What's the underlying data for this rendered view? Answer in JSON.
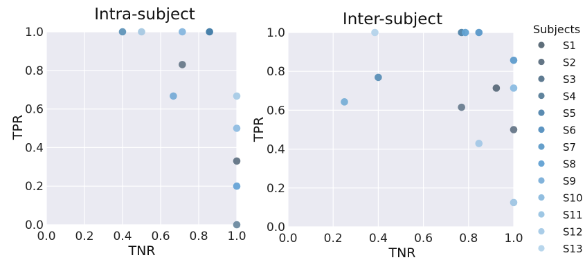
{
  "chart_data": [
    {
      "type": "scatter",
      "title": "Intra-subject",
      "xlabel": "TNR",
      "ylabel": "TPR",
      "xlim": [
        0.0,
        1.0
      ],
      "ylim": [
        0.0,
        1.0
      ],
      "xticks": [
        "0.0",
        "0.2",
        "0.4",
        "0.6",
        "0.8",
        "1.0"
      ],
      "yticks": [
        "0.0",
        "0.2",
        "0.4",
        "0.6",
        "0.8",
        "1.0"
      ],
      "grid": true,
      "points": [
        {
          "x": 1.0,
          "y": 0.33,
          "color": "#627485"
        },
        {
          "x": 0.714,
          "y": 0.83,
          "color": "#697a8a"
        },
        {
          "x": 1.0,
          "y": 0.0,
          "color": "#6d8aa0"
        },
        {
          "x": 0.857,
          "y": 1.0,
          "color": "#3f7aa5"
        },
        {
          "x": 0.4,
          "y": 1.0,
          "color": "#5f93b8"
        },
        {
          "x": 1.0,
          "y": 0.2,
          "color": "#66a3d6"
        },
        {
          "x": 0.667,
          "y": 0.667,
          "color": "#78acd6"
        },
        {
          "x": 0.714,
          "y": 1.0,
          "color": "#86b6de"
        },
        {
          "x": 1.0,
          "y": 0.5,
          "color": "#8fbde2"
        },
        {
          "x": 0.5,
          "y": 1.0,
          "color": "#a6c8e2"
        },
        {
          "x": 1.0,
          "y": 0.667,
          "color": "#a8cbe6"
        }
      ]
    },
    {
      "type": "scatter",
      "title": "Inter-subject",
      "xlabel": "TNR",
      "ylabel": "TPR",
      "xlim": [
        0.0,
        1.0
      ],
      "ylim": [
        0.0,
        1.0
      ],
      "xticks": [
        "0.0",
        "0.2",
        "0.4",
        "0.6",
        "0.8",
        "1.0"
      ],
      "yticks": [
        "0.0",
        "0.2",
        "0.4",
        "0.6",
        "0.8",
        "1.0"
      ],
      "grid": true,
      "legend_position": "right",
      "legend": {
        "title": "Subjects",
        "entries": [
          {
            "label": "S1",
            "color": "#5e6e7a"
          },
          {
            "label": "S2",
            "color": "#637585"
          },
          {
            "label": "S3",
            "color": "#5f7b91"
          },
          {
            "label": "S4",
            "color": "#60849d"
          },
          {
            "label": "S5",
            "color": "#5a8bb1"
          },
          {
            "label": "S6",
            "color": "#5d95c2"
          },
          {
            "label": "S7",
            "color": "#66a0cb"
          },
          {
            "label": "S8",
            "color": "#6aa6d5"
          },
          {
            "label": "S9",
            "color": "#82b3db"
          },
          {
            "label": "S10",
            "color": "#91bee0"
          },
          {
            "label": "S11",
            "color": "#9ec7e4"
          },
          {
            "label": "S12",
            "color": "#aacde8"
          },
          {
            "label": "S13",
            "color": "#b8d6ec"
          }
        ]
      },
      "points": [
        {
          "x": 0.923,
          "y": 0.714,
          "color": "#5b6c7a"
        },
        {
          "x": 0.769,
          "y": 0.615,
          "color": "#6b7e90"
        },
        {
          "x": 1.0,
          "y": 0.5,
          "color": "#667788"
        },
        {
          "x": 0.769,
          "y": 1.0,
          "color": "#4f83a8"
        },
        {
          "x": 0.4,
          "y": 0.769,
          "color": "#5b8fb6"
        },
        {
          "x": 0.846,
          "y": 1.0,
          "color": "#5a98c9"
        },
        {
          "x": 0.786,
          "y": 1.0,
          "color": "#62a2d2"
        },
        {
          "x": 1.0,
          "y": 0.857,
          "color": "#5f9ccc"
        },
        {
          "x": 0.25,
          "y": 0.643,
          "color": "#79afd6"
        },
        {
          "x": 1.0,
          "y": 0.714,
          "color": "#8bbce2"
        },
        {
          "x": 0.846,
          "y": 0.429,
          "color": "#a4c8e6"
        },
        {
          "x": 0.385,
          "y": 1.0,
          "color": "#b4d3ea"
        },
        {
          "x": 1.0,
          "y": 0.125,
          "color": "#9fc5e3"
        }
      ]
    }
  ]
}
